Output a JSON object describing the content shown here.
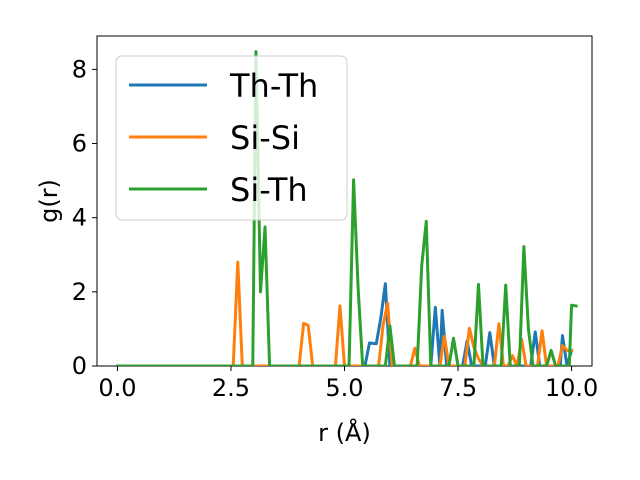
{
  "chart_data": {
    "type": "line",
    "xlabel": "r (Å)",
    "ylabel": "g(r)",
    "xlim": [
      -0.45,
      10.45
    ],
    "ylim": [
      0,
      8.9
    ],
    "xticks": [
      0.0,
      2.5,
      5.0,
      7.5,
      10.0
    ],
    "xtick_labels": [
      "0.0",
      "2.5",
      "5.0",
      "7.5",
      "10.0"
    ],
    "yticks": [
      0,
      2,
      4,
      6,
      8
    ],
    "ytick_labels": [
      "0",
      "2",
      "4",
      "6",
      "8"
    ],
    "grid": false,
    "legend_position": "top-left",
    "series": [
      {
        "name": "Th-Th",
        "color": "#1f77b4",
        "points": [
          [
            0.0,
            0
          ],
          [
            5.45,
            0
          ],
          [
            5.55,
            0.62
          ],
          [
            5.7,
            0.6
          ],
          [
            5.8,
            1.3
          ],
          [
            5.9,
            2.22
          ],
          [
            6.0,
            0
          ],
          [
            6.9,
            0
          ],
          [
            7.0,
            1.58
          ],
          [
            7.1,
            0
          ],
          [
            7.15,
            1.5
          ],
          [
            7.25,
            0
          ],
          [
            7.6,
            0
          ],
          [
            7.7,
            0.68
          ],
          [
            7.8,
            0
          ],
          [
            8.1,
            0
          ],
          [
            8.2,
            0.9
          ],
          [
            8.3,
            0
          ],
          [
            9.1,
            0
          ],
          [
            9.2,
            0.92
          ],
          [
            9.3,
            0
          ],
          [
            9.75,
            0
          ],
          [
            9.8,
            0.82
          ],
          [
            9.9,
            0
          ],
          [
            10.0,
            0.42
          ]
        ]
      },
      {
        "name": "Si-Si",
        "color": "#ff7f0e",
        "points": [
          [
            0.0,
            0
          ],
          [
            2.55,
            0
          ],
          [
            2.65,
            2.8
          ],
          [
            2.75,
            0
          ],
          [
            4.0,
            0
          ],
          [
            4.1,
            1.15
          ],
          [
            4.2,
            1.1
          ],
          [
            4.3,
            0
          ],
          [
            4.8,
            0
          ],
          [
            4.9,
            1.62
          ],
          [
            5.0,
            0
          ],
          [
            5.75,
            0
          ],
          [
            5.85,
            1.1
          ],
          [
            5.95,
            1.7
          ],
          [
            6.05,
            0
          ],
          [
            6.45,
            0
          ],
          [
            6.55,
            0.48
          ],
          [
            6.65,
            0
          ],
          [
            7.1,
            0
          ],
          [
            7.2,
            0.8
          ],
          [
            7.3,
            0
          ],
          [
            7.65,
            0
          ],
          [
            7.75,
            1.02
          ],
          [
            7.85,
            0.5
          ],
          [
            7.95,
            0.2
          ],
          [
            8.05,
            0
          ],
          [
            8.3,
            0
          ],
          [
            8.4,
            1.14
          ],
          [
            8.5,
            0
          ],
          [
            8.6,
            0
          ],
          [
            8.7,
            0.28
          ],
          [
            8.8,
            0
          ],
          [
            8.9,
            0.72
          ],
          [
            9.0,
            0
          ],
          [
            9.25,
            0
          ],
          [
            9.35,
            0.95
          ],
          [
            9.45,
            0
          ],
          [
            9.7,
            0
          ],
          [
            9.8,
            0.55
          ],
          [
            9.9,
            0.42
          ],
          [
            10.0,
            0.42
          ]
        ]
      },
      {
        "name": "Si-Th",
        "color": "#2ca02c",
        "points": [
          [
            0.0,
            0
          ],
          [
            2.98,
            0
          ],
          [
            3.05,
            8.48
          ],
          [
            3.15,
            2.0
          ],
          [
            3.25,
            3.75
          ],
          [
            3.35,
            0
          ],
          [
            5.1,
            0
          ],
          [
            5.2,
            5.02
          ],
          [
            5.3,
            2.1
          ],
          [
            5.4,
            0
          ],
          [
            5.9,
            0
          ],
          [
            6.0,
            1.08
          ],
          [
            6.1,
            0
          ],
          [
            6.6,
            0
          ],
          [
            6.7,
            2.7
          ],
          [
            6.8,
            3.9
          ],
          [
            6.9,
            0
          ],
          [
            7.3,
            0
          ],
          [
            7.4,
            0.75
          ],
          [
            7.5,
            0
          ],
          [
            7.85,
            0
          ],
          [
            7.95,
            2.2
          ],
          [
            8.05,
            0
          ],
          [
            8.45,
            0
          ],
          [
            8.55,
            2.18
          ],
          [
            8.65,
            0
          ],
          [
            8.85,
            0
          ],
          [
            8.95,
            3.22
          ],
          [
            9.05,
            1.0
          ],
          [
            9.15,
            0
          ],
          [
            9.45,
            0
          ],
          [
            9.55,
            0.42
          ],
          [
            9.65,
            0
          ],
          [
            9.95,
            0
          ],
          [
            10.0,
            1.64
          ],
          [
            10.1,
            1.62
          ]
        ]
      }
    ]
  }
}
